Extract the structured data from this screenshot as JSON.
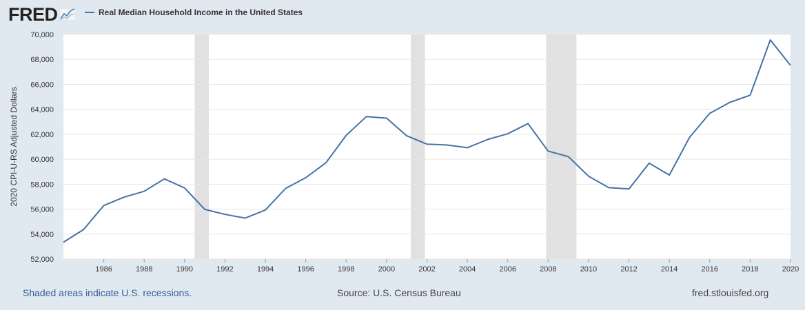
{
  "header": {
    "logo_text": "FRED",
    "logo_icon": "chart-line-icon"
  },
  "chart_data": {
    "type": "line",
    "title": "",
    "xlabel": "",
    "ylabel": "2020 CPI-U-RS Adjusted Dollars",
    "ylim": [
      52000,
      70000
    ],
    "y_ticks": [
      "52,000",
      "54,000",
      "56,000",
      "58,000",
      "60,000",
      "62,000",
      "64,000",
      "66,000",
      "68,000",
      "70,000"
    ],
    "x_ticks": [
      "1986",
      "1988",
      "1990",
      "1992",
      "1994",
      "1996",
      "1998",
      "2000",
      "2002",
      "2004",
      "2006",
      "2008",
      "2010",
      "2012",
      "2014",
      "2016",
      "2018",
      "2020"
    ],
    "xlim": [
      1984,
      2020
    ],
    "grid": true,
    "legend_position": "top-left",
    "recession_periods": [
      [
        1990.5,
        1991.2
      ],
      [
        2001.2,
        2001.9
      ],
      [
        2007.9,
        2009.4
      ]
    ],
    "series": [
      {
        "name": "Real Median Household Income in the United States",
        "color": "#4572a7",
        "x": [
          1984,
          1985,
          1986,
          1987,
          1988,
          1989,
          1990,
          1991,
          1992,
          1993,
          1994,
          1995,
          1996,
          1997,
          1998,
          1999,
          2000,
          2001,
          2002,
          2003,
          2004,
          2005,
          2006,
          2007,
          2008,
          2009,
          2010,
          2011,
          2012,
          2013,
          2014,
          2015,
          2016,
          2017,
          2018,
          2019,
          2020
        ],
        "y": [
          53350,
          54370,
          56290,
          56960,
          57430,
          58420,
          57700,
          55980,
          55580,
          55280,
          55930,
          57660,
          58520,
          59720,
          61910,
          63420,
          63290,
          61870,
          61210,
          61140,
          60920,
          61580,
          62040,
          62860,
          60650,
          60210,
          58640,
          57720,
          57620,
          59680,
          58730,
          61750,
          63680,
          64560,
          65130,
          69560,
          67520
        ]
      }
    ]
  },
  "footer": {
    "recession_note": "Shaded areas indicate U.S. recessions.",
    "source": "Source: U.S. Census Bureau",
    "site": "fred.stlouisfed.org"
  }
}
